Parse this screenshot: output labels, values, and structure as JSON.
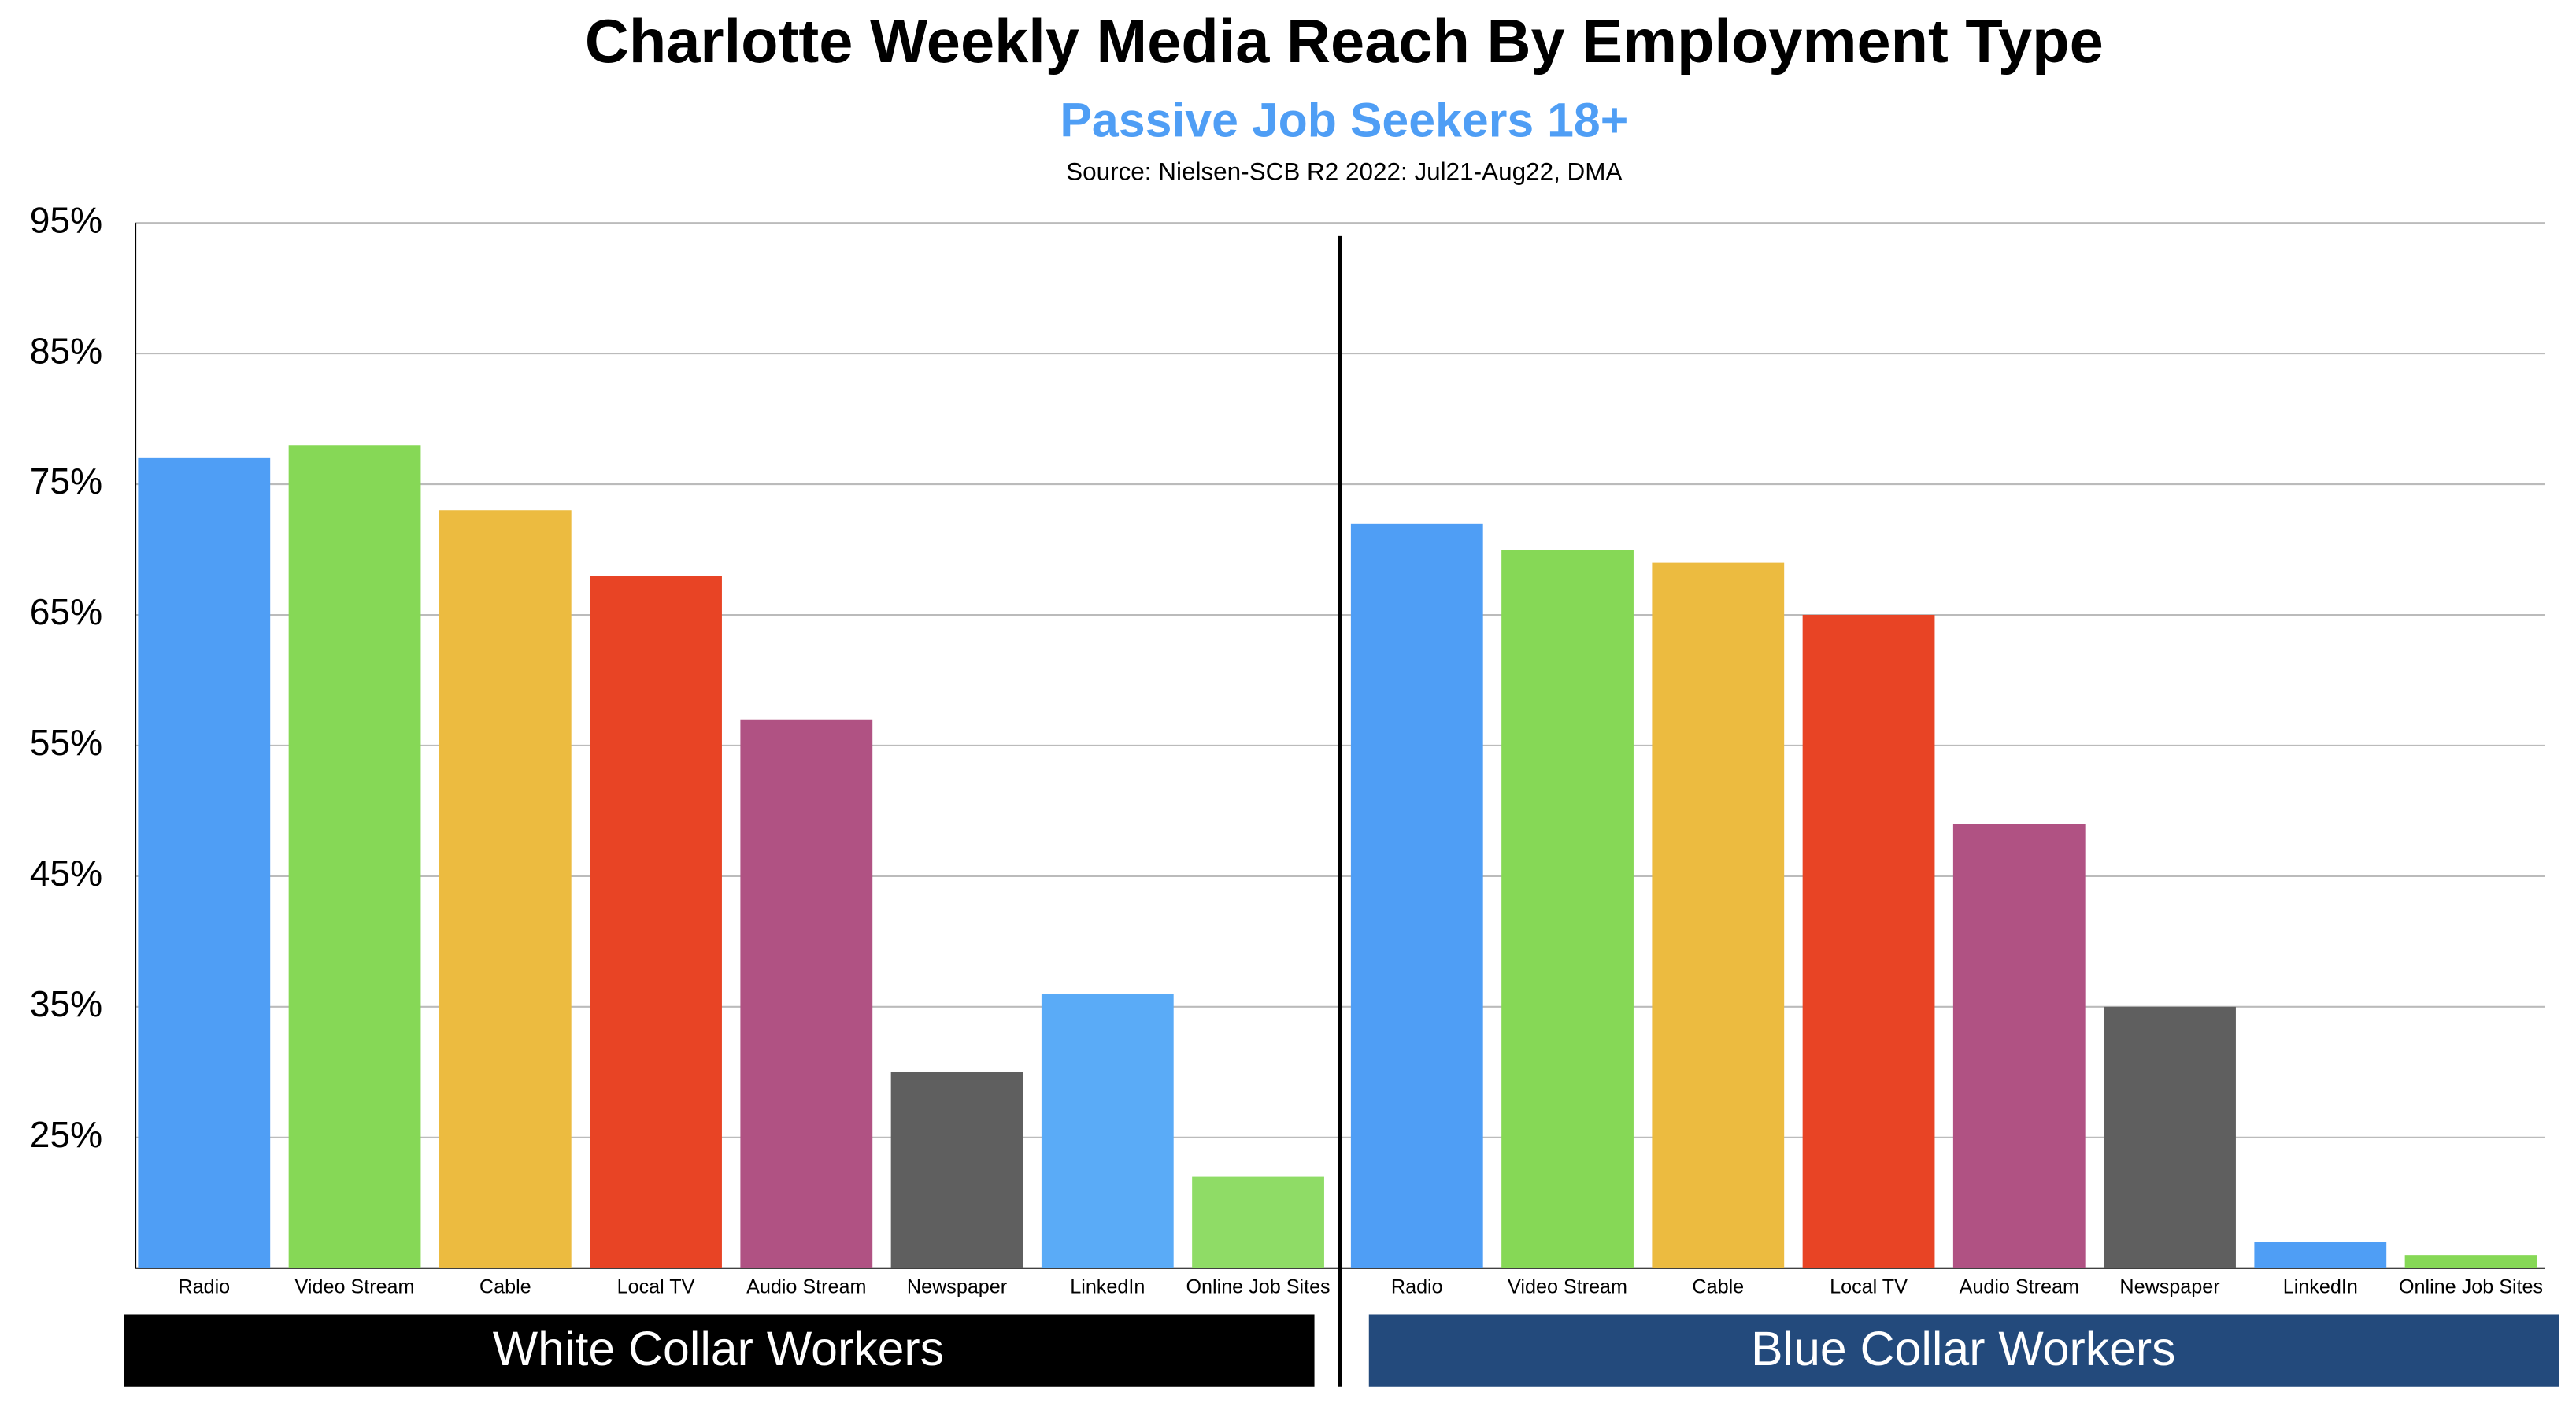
{
  "chart_data": {
    "type": "bar",
    "title": "Charlotte Weekly Media Reach By Employment Type",
    "subtitle": "Passive Job Seekers 18+",
    "source": "Source: Nielsen-SCB R2 2022: Jul21-Aug22, DMA",
    "ylim": [
      15,
      95
    ],
    "yticks": [
      {
        "value": 25,
        "label": "25%"
      },
      {
        "value": 35,
        "label": "35%"
      },
      {
        "value": 45,
        "label": "45%"
      },
      {
        "value": 55,
        "label": "55%"
      },
      {
        "value": 65,
        "label": "65%"
      },
      {
        "value": 75,
        "label": "75%"
      },
      {
        "value": 85,
        "label": "85%"
      },
      {
        "value": 95,
        "label": "95%"
      }
    ],
    "grid": true,
    "panels": [
      {
        "label": "White Collar Workers",
        "label_color": "#000000",
        "categories": [
          "Radio",
          "Video Stream",
          "Cable",
          "Local TV",
          "Audio Stream",
          "Newspaper",
          "LinkedIn",
          "Online Job Sites"
        ],
        "values": [
          77,
          78,
          73,
          68,
          57,
          30,
          36,
          22
        ],
        "colors": [
          "#4f9ef5",
          "#86d856",
          "#ecbb40",
          "#e84425",
          "#b05283",
          "#5f5f5f",
          "#5aabf7",
          "#8fdc66"
        ]
      },
      {
        "label": "Blue Collar Workers",
        "label_color": "#234a7c",
        "categories": [
          "Radio",
          "Video Stream",
          "Cable",
          "Local TV",
          "Audio Stream",
          "Newspaper",
          "LinkedIn",
          "Online Job Sites"
        ],
        "values": [
          72,
          70,
          69,
          65,
          49,
          35,
          17,
          16
        ],
        "colors": [
          "#4f9ef5",
          "#86d856",
          "#ecbb40",
          "#e84425",
          "#b05283",
          "#5f5f5f",
          "#4f9ef5",
          "#86d856"
        ]
      }
    ]
  }
}
